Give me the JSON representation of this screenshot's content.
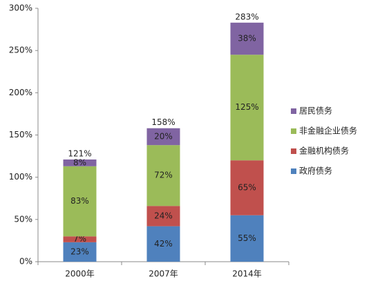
{
  "chart_data": {
    "type": "stacked_bar",
    "categories": [
      "2000年",
      "2007年",
      "2014年"
    ],
    "series": [
      {
        "name": "政府债务",
        "color": "#4f81bd",
        "values": [
          23,
          42,
          55
        ],
        "value_labels": [
          "23%",
          "42%",
          "55%"
        ]
      },
      {
        "name": "金融机构债务",
        "color": "#c0504d",
        "values": [
          7,
          24,
          65
        ],
        "value_labels": [
          "7%",
          "24%",
          "65%"
        ]
      },
      {
        "name": "非金融企业债务",
        "color": "#9bbb59",
        "values": [
          83,
          72,
          125
        ],
        "value_labels": [
          "83%",
          "72%",
          "125%"
        ]
      },
      {
        "name": "居民债务",
        "color": "#8064a2",
        "values": [
          8,
          20,
          38
        ],
        "value_labels": [
          "8%",
          "20%",
          "38%"
        ]
      }
    ],
    "totals": [
      121,
      158,
      283
    ],
    "total_labels": [
      "121%",
      "158%",
      "283%"
    ],
    "ylim": [
      0,
      300
    ],
    "yticks": [
      {
        "value": 0,
        "label": "0%"
      },
      {
        "value": 50,
        "label": "50%"
      },
      {
        "value": 100,
        "label": "100%"
      },
      {
        "value": 150,
        "label": "150%"
      },
      {
        "value": 200,
        "label": "200%"
      },
      {
        "value": 250,
        "label": "250%"
      },
      {
        "value": 300,
        "label": "300%"
      }
    ],
    "legend": "right"
  }
}
